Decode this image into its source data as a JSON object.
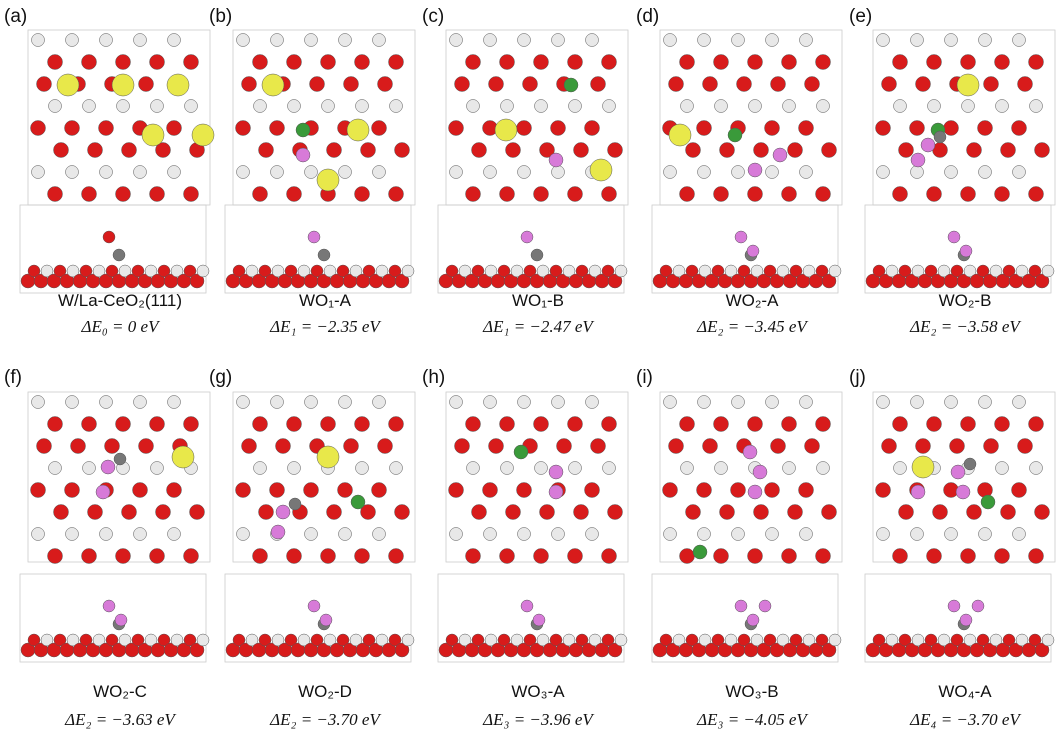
{
  "panels": [
    {
      "letter": "(a)",
      "name": "W/La-CeO₂(111)",
      "energy": "ΔE₀ = 0 eV"
    },
    {
      "letter": "(b)",
      "name": "WO₁-A",
      "energy": "ΔE₁ = −2.35 eV"
    },
    {
      "letter": "(c)",
      "name": "WO₁-B",
      "energy": "ΔE₁ = −2.47 eV"
    },
    {
      "letter": "(d)",
      "name": "WO₂-A",
      "energy": "ΔE₂ = −3.45 eV"
    },
    {
      "letter": "(e)",
      "name": "WO₂-B",
      "energy": "ΔE₂ = −3.58 eV"
    },
    {
      "letter": "(f)",
      "name": "WO₂-C",
      "energy": "ΔE₂ = −3.63 eV"
    },
    {
      "letter": "(g)",
      "name": "WO₂-D",
      "energy": "ΔE₂ = −3.70 eV"
    },
    {
      "letter": "(h)",
      "name": "WO₃-A",
      "energy": "ΔE₃ = −3.96 eV"
    },
    {
      "letter": "(i)",
      "name": "WO₃-B",
      "energy": "ΔE₃ = −4.05 eV"
    },
    {
      "letter": "(j)",
      "name": "WO₄-A",
      "energy": "ΔE₄ = −3.70 eV"
    }
  ]
}
